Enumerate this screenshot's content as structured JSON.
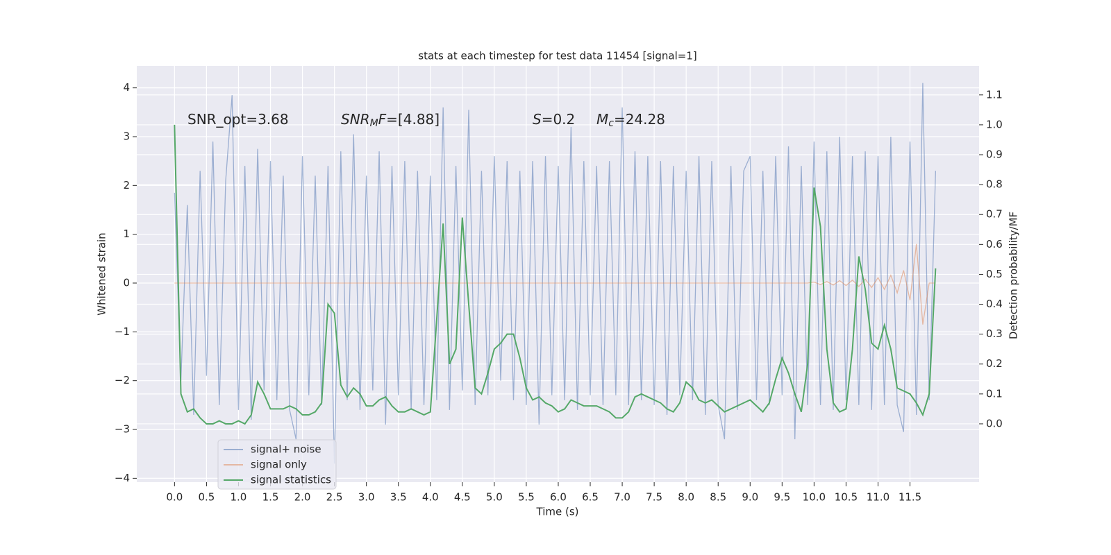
{
  "chart_data": {
    "type": "line",
    "title": "stats at each timestep for test data 11454 [signal=1]",
    "xlabel": "Time (s)",
    "ylabel": "Whitened strain",
    "y2label": "Detection probability/MF",
    "grid": true,
    "legend": "lower left",
    "annotations": [
      {
        "parts": [
          {
            "text": "SNR_opt=3.68",
            "style": "normal"
          }
        ]
      },
      {
        "parts": [
          {
            "text": "SNR",
            "style": "italic"
          },
          {
            "text": "M",
            "style": "italic-sub"
          },
          {
            "text": "F",
            "style": "italic"
          },
          {
            "text": "=[4.88]",
            "style": "normal"
          }
        ]
      },
      {
        "parts": [
          {
            "text": "S",
            "style": "italic"
          },
          {
            "text": "=0.2",
            "style": "normal"
          }
        ]
      },
      {
        "parts": [
          {
            "text": "M",
            "style": "italic"
          },
          {
            "text": "c",
            "style": "italic-sub"
          },
          {
            "text": "=24.28",
            "style": "normal"
          }
        ]
      }
    ],
    "xlim": [
      -0.59,
      12.58
    ],
    "ylim": [
      -4.08,
      4.45
    ],
    "y2lim": [
      -0.195,
      1.197
    ],
    "xticks": [
      {
        "value": 0,
        "label": "0.0"
      },
      {
        "value": 0.5,
        "label": "0.5"
      },
      {
        "value": 1,
        "label": "1.0"
      },
      {
        "value": 1.5,
        "label": "1.5"
      },
      {
        "value": 2,
        "label": "2.0"
      },
      {
        "value": 2.5,
        "label": "2.5"
      },
      {
        "value": 3,
        "label": "3.0"
      },
      {
        "value": 3.5,
        "label": "3.5"
      },
      {
        "value": 4,
        "label": "4.0"
      },
      {
        "value": 4.5,
        "label": "4.5"
      },
      {
        "value": 5,
        "label": "5.0"
      },
      {
        "value": 5.5,
        "label": "5.5"
      },
      {
        "value": 6,
        "label": "6.0"
      },
      {
        "value": 6.5,
        "label": "6.5"
      },
      {
        "value": 7,
        "label": "7.0"
      },
      {
        "value": 7.5,
        "label": "7.5"
      },
      {
        "value": 8,
        "label": "8.0"
      },
      {
        "value": 8.5,
        "label": "8.5"
      },
      {
        "value": 9,
        "label": "9.0"
      },
      {
        "value": 9.5,
        "label": "9.5"
      },
      {
        "value": 10,
        "label": "10.0"
      },
      {
        "value": 10.5,
        "label": "10.5"
      },
      {
        "value": 11,
        "label": "11.0"
      },
      {
        "value": 11.5,
        "label": "11.5"
      }
    ],
    "yticks": [
      {
        "value": -4,
        "label": "−4"
      },
      {
        "value": -3,
        "label": "−3"
      },
      {
        "value": -2,
        "label": "−2"
      },
      {
        "value": -1,
        "label": "−1"
      },
      0,
      1,
      2,
      3,
      4
    ],
    "y2ticks": [
      {
        "value": 0,
        "label": "0.0"
      },
      {
        "value": 0.1,
        "label": "0.1"
      },
      {
        "value": 0.2,
        "label": "0.2"
      },
      {
        "value": 0.3,
        "label": "0.3"
      },
      {
        "value": 0.4,
        "label": "0.4"
      },
      {
        "value": 0.5,
        "label": "0.5"
      },
      {
        "value": 0.6,
        "label": "0.6"
      },
      {
        "value": 0.7,
        "label": "0.7"
      },
      {
        "value": 0.8,
        "label": "0.8"
      },
      {
        "value": 0.9,
        "label": "0.9"
      },
      {
        "value": 1,
        "label": "1.0"
      },
      {
        "value": 1.1,
        "label": "1.1"
      }
    ],
    "x": [
      0,
      0.1,
      0.2,
      0.3,
      0.4,
      0.5,
      0.6,
      0.7,
      0.8,
      0.9,
      1,
      1.1,
      1.2,
      1.3,
      1.4,
      1.5,
      1.6,
      1.7,
      1.8,
      1.9,
      2,
      2.1,
      2.2,
      2.3,
      2.4,
      2.5,
      2.6,
      2.7,
      2.8,
      2.9,
      3,
      3.1,
      3.2,
      3.3,
      3.4,
      3.5,
      3.6,
      3.7,
      3.8,
      3.9,
      4,
      4.1,
      4.2,
      4.3,
      4.4,
      4.5,
      4.6,
      4.7,
      4.8,
      4.9,
      5,
      5.1,
      5.2,
      5.3,
      5.4,
      5.5,
      5.6,
      5.7,
      5.8,
      5.9,
      6,
      6.1,
      6.2,
      6.3,
      6.4,
      6.5,
      6.6,
      6.7,
      6.8,
      6.9,
      7,
      7.1,
      7.2,
      7.3,
      7.4,
      7.5,
      7.6,
      7.7,
      7.8,
      7.9,
      8,
      8.1,
      8.2,
      8.3,
      8.4,
      8.5,
      8.6,
      8.7,
      8.8,
      8.9,
      9,
      9.1,
      9.2,
      9.3,
      9.4,
      9.5,
      9.6,
      9.7,
      9.8,
      9.9,
      10,
      10.1,
      10.2,
      10.3,
      10.4,
      10.5,
      10.6,
      10.7,
      10.8,
      10.9,
      11,
      11.1,
      11.2,
      11.3,
      11.4,
      11.5,
      11.6,
      11.7,
      11.8,
      11.9
    ],
    "series": [
      {
        "name": "signal+ noise",
        "color": "#4c72b0",
        "opacity": 0.5,
        "axis": "y",
        "values": [
          1.85,
          -2.0,
          1.6,
          -2.7,
          2.3,
          -1.9,
          2.9,
          -2.5,
          2.1,
          3.85,
          -2.6,
          2.4,
          -2.8,
          2.75,
          -2.2,
          2.5,
          -2.4,
          2.2,
          -2.6,
          -3.2,
          2.6,
          -2.3,
          2.2,
          -2.5,
          2.4,
          -3.7,
          2.7,
          -2.4,
          3.05,
          -2.6,
          2.2,
          -2.2,
          2.7,
          -2.9,
          2.4,
          -2.3,
          2.5,
          -2.6,
          2.3,
          -2.5,
          2.2,
          -2.4,
          3.6,
          -2.6,
          2.4,
          -2.2,
          3.55,
          -2.5,
          2.3,
          -2.3,
          2.6,
          -2.0,
          2.5,
          -2.4,
          2.3,
          -2.5,
          2.5,
          -2.9,
          2.6,
          -2.3,
          2.4,
          -2.4,
          3.2,
          -2.6,
          2.5,
          -2.3,
          2.4,
          -2.5,
          2.5,
          -2.3,
          3.6,
          -2.5,
          2.7,
          -2.4,
          2.6,
          -2.5,
          2.5,
          -2.7,
          2.4,
          -2.3,
          2.3,
          -2.4,
          2.6,
          -2.7,
          2.5,
          -2.5,
          -3.2,
          2.4,
          -2.6,
          2.3,
          2.6,
          -2.4,
          2.3,
          -2.5,
          2.6,
          -2.3,
          2.8,
          -3.2,
          2.4,
          -2.5,
          2.9,
          -2.5,
          2.7,
          -2.6,
          3.0,
          -2.4,
          2.6,
          -2.5,
          2.7,
          -2.6,
          2.6,
          -2.5,
          3.0,
          -2.5,
          -3.05,
          2.9,
          -2.7,
          4.1,
          -2.4,
          2.3
        ]
      },
      {
        "name": "signal only",
        "color": "#dd8452",
        "opacity": 0.5,
        "axis": "y",
        "values": [
          0,
          0,
          0,
          0,
          0,
          0,
          0,
          0,
          0,
          0,
          0,
          0,
          0,
          0,
          0,
          0,
          0,
          0,
          0,
          0,
          0,
          0,
          0,
          0,
          0,
          0,
          0,
          0,
          0,
          0,
          0,
          0,
          0,
          0,
          0,
          0,
          0,
          0,
          0,
          0,
          0,
          0,
          0,
          0,
          0,
          0,
          0,
          0,
          0,
          0,
          0,
          0,
          0,
          0,
          0,
          0,
          0,
          0,
          0,
          0,
          0,
          0,
          0,
          0,
          0,
          0,
          0,
          0,
          0,
          0,
          0,
          0,
          0,
          0,
          0,
          0,
          0,
          0,
          0,
          0,
          0,
          0,
          0,
          0,
          0,
          0,
          0,
          0,
          0,
          0,
          0,
          0,
          0,
          0,
          0,
          0,
          0,
          0,
          0,
          0,
          0.02,
          -0.03,
          0.03,
          -0.04,
          0.05,
          -0.05,
          0.06,
          -0.07,
          0.08,
          -0.09,
          0.11,
          -0.13,
          0.16,
          -0.2,
          0.26,
          -0.35,
          0.8,
          -0.85,
          0,
          0
        ]
      },
      {
        "name": "signal statistics",
        "color": "#55a868",
        "opacity": 1,
        "axis": "y2",
        "values": [
          1.0,
          0.1,
          0.04,
          0.05,
          0.02,
          0.0,
          0.0,
          0.01,
          0.0,
          0.0,
          0.01,
          0.0,
          0.03,
          0.14,
          0.1,
          0.05,
          0.05,
          0.05,
          0.06,
          0.05,
          0.03,
          0.03,
          0.04,
          0.07,
          0.4,
          0.37,
          0.13,
          0.09,
          0.12,
          0.1,
          0.06,
          0.06,
          0.08,
          0.09,
          0.06,
          0.04,
          0.04,
          0.05,
          0.04,
          0.03,
          0.04,
          0.35,
          0.67,
          0.2,
          0.25,
          0.69,
          0.4,
          0.12,
          0.1,
          0.17,
          0.25,
          0.27,
          0.3,
          0.3,
          0.22,
          0.12,
          0.08,
          0.09,
          0.07,
          0.06,
          0.04,
          0.05,
          0.08,
          0.07,
          0.06,
          0.06,
          0.06,
          0.05,
          0.04,
          0.02,
          0.02,
          0.04,
          0.09,
          0.1,
          0.09,
          0.08,
          0.07,
          0.05,
          0.04,
          0.07,
          0.14,
          0.12,
          0.08,
          0.07,
          0.08,
          0.06,
          0.04,
          0.05,
          0.06,
          0.07,
          0.08,
          0.06,
          0.04,
          0.07,
          0.15,
          0.22,
          0.17,
          0.1,
          0.04,
          0.2,
          0.79,
          0.66,
          0.25,
          0.07,
          0.04,
          0.05,
          0.25,
          0.56,
          0.45,
          0.27,
          0.25,
          0.33,
          0.25,
          0.12,
          0.11,
          0.1,
          0.07,
          0.03,
          0.1,
          0.52
        ]
      }
    ]
  }
}
